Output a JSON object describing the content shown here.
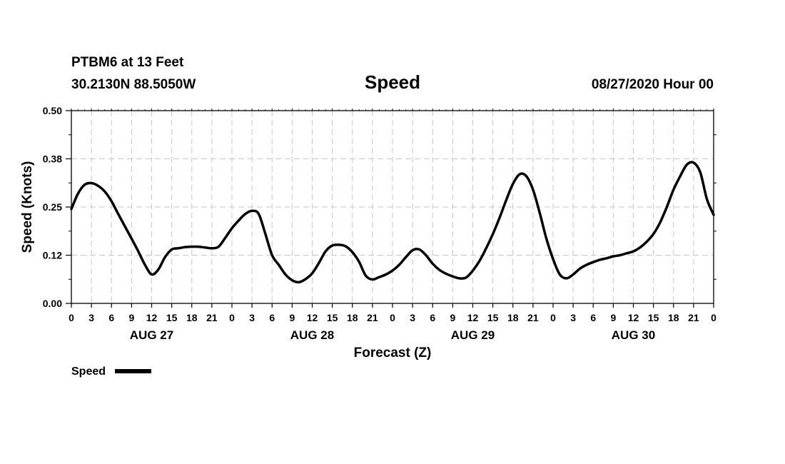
{
  "header": {
    "station": "PTBM6 at 13 Feet",
    "coords": "30.2130N 88.5050W",
    "title": "Speed",
    "datetime": "08/27/2020 Hour 00"
  },
  "chart_data": {
    "type": "line",
    "title": "Speed",
    "xlabel": "Forecast (Z)",
    "ylabel": "Speed (Knots)",
    "ylim": [
      0,
      0.5
    ],
    "yticks": [
      "0.00",
      "0.12",
      "0.25",
      "0.38",
      "0.50"
    ],
    "xlim": [
      0,
      96
    ],
    "xticks": [
      "0",
      "3",
      "6",
      "9",
      "12",
      "15",
      "18",
      "21",
      "0",
      "3",
      "6",
      "9",
      "12",
      "15",
      "18",
      "21",
      "0",
      "3",
      "6",
      "9",
      "12",
      "15",
      "18",
      "21",
      "0",
      "3",
      "6",
      "9",
      "12",
      "15",
      "18",
      "21",
      "0"
    ],
    "days": [
      "AUG 27",
      "AUG 28",
      "AUG 29",
      "AUG 30"
    ],
    "grid": true,
    "legend_position": "bottom-left",
    "line_color": "#000000",
    "series": [
      {
        "name": "Speed",
        "x": [
          0,
          1,
          2,
          3,
          4,
          5,
          6,
          7,
          8,
          9,
          10,
          11,
          12,
          13,
          14,
          15,
          16,
          17,
          18,
          19,
          20,
          21,
          22,
          23,
          24,
          25,
          26,
          27,
          28,
          29,
          30,
          31,
          32,
          33,
          34,
          35,
          36,
          37,
          38,
          39,
          40,
          41,
          42,
          43,
          44,
          45,
          46,
          47,
          48,
          49,
          50,
          51,
          52,
          53,
          54,
          55,
          56,
          57,
          58,
          59,
          60,
          61,
          62,
          63,
          64,
          65,
          66,
          67,
          68,
          69,
          70,
          71,
          72,
          73,
          74,
          75,
          76,
          77,
          78,
          79,
          80,
          81,
          82,
          83,
          84,
          85,
          86,
          87,
          88,
          89,
          90,
          91,
          92,
          93,
          94,
          95,
          96
        ],
        "values": [
          0.245,
          0.285,
          0.308,
          0.312,
          0.305,
          0.29,
          0.265,
          0.232,
          0.2,
          0.168,
          0.135,
          0.1,
          0.075,
          0.088,
          0.12,
          0.14,
          0.143,
          0.146,
          0.147,
          0.147,
          0.145,
          0.143,
          0.147,
          0.17,
          0.195,
          0.215,
          0.232,
          0.24,
          0.232,
          0.18,
          0.125,
          0.1,
          0.075,
          0.06,
          0.055,
          0.063,
          0.078,
          0.105,
          0.135,
          0.15,
          0.152,
          0.148,
          0.133,
          0.108,
          0.072,
          0.062,
          0.068,
          0.075,
          0.085,
          0.1,
          0.12,
          0.138,
          0.14,
          0.125,
          0.103,
          0.087,
          0.077,
          0.07,
          0.065,
          0.067,
          0.085,
          0.11,
          0.143,
          0.18,
          0.222,
          0.268,
          0.31,
          0.335,
          0.33,
          0.295,
          0.235,
          0.168,
          0.115,
          0.075,
          0.065,
          0.075,
          0.09,
          0.1,
          0.107,
          0.113,
          0.117,
          0.122,
          0.125,
          0.13,
          0.135,
          0.145,
          0.16,
          0.18,
          0.21,
          0.25,
          0.295,
          0.33,
          0.36,
          0.365,
          0.34,
          0.27,
          0.23
        ]
      }
    ]
  },
  "legend": {
    "label": "Speed"
  }
}
